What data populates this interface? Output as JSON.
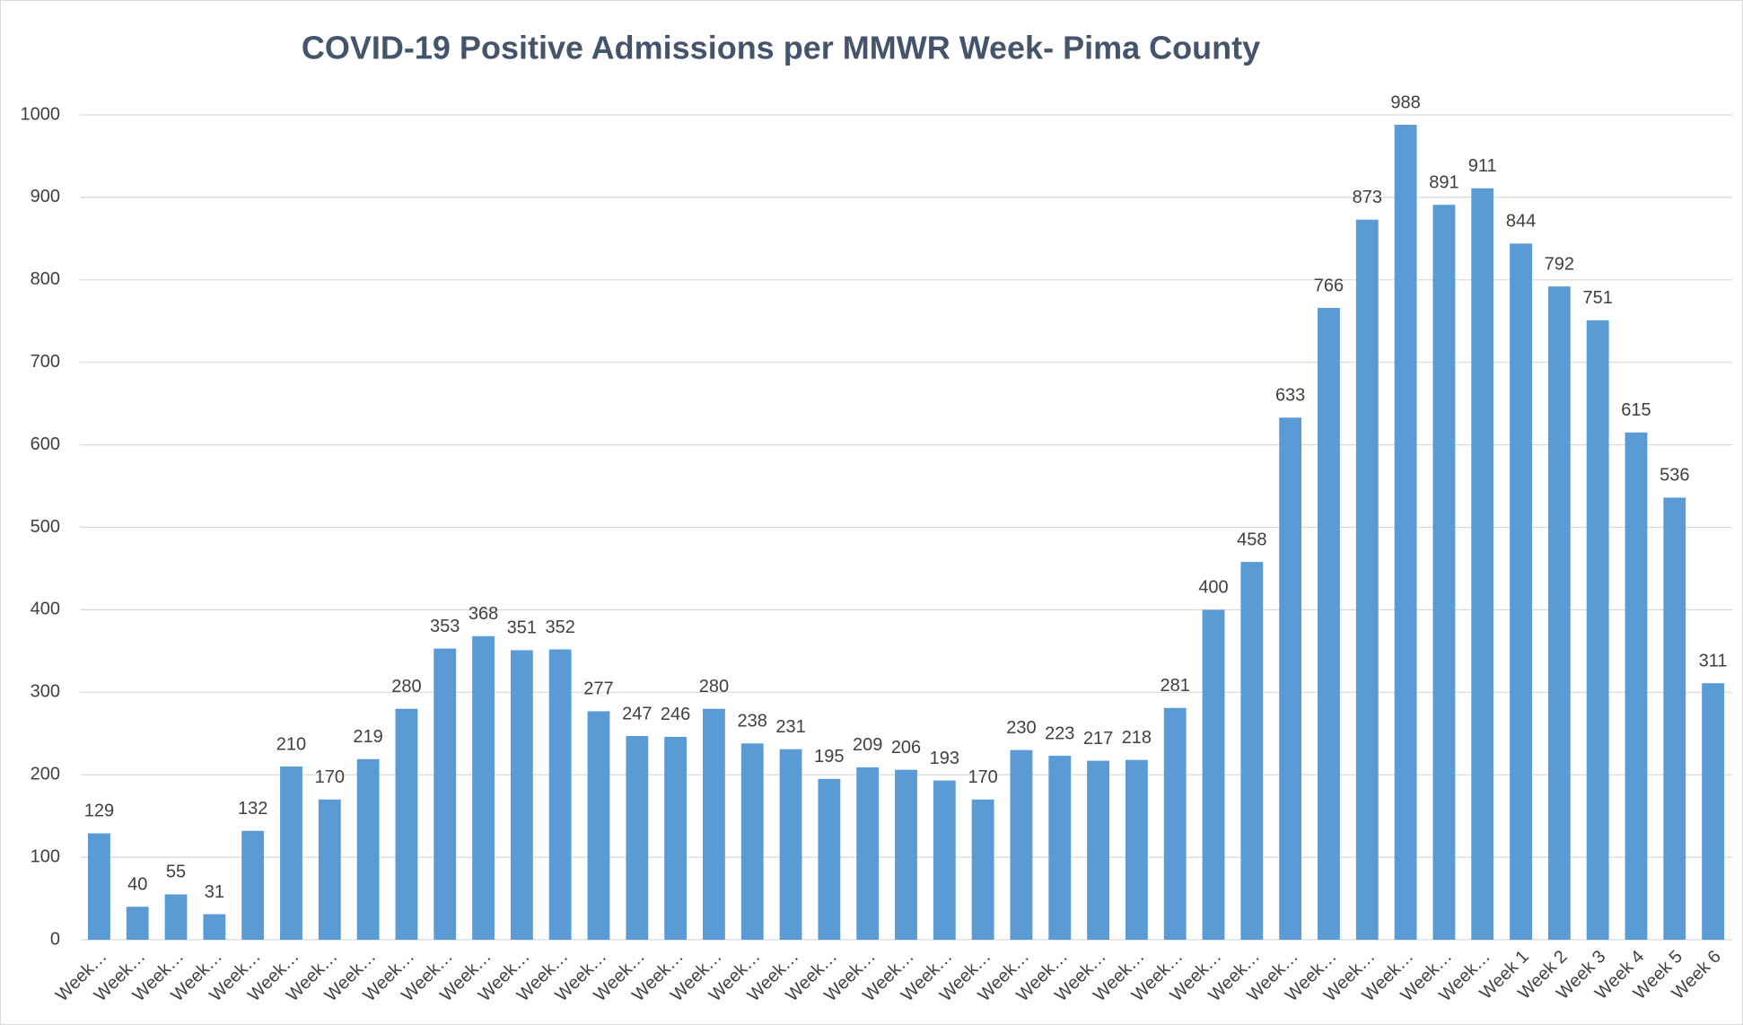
{
  "chart_data": {
    "type": "bar",
    "title": "COVID-19 Positive Admissions per MMWR Week- Pima County",
    "categories": [
      "Week…",
      "Week…",
      "Week…",
      "Week…",
      "Week…",
      "Week…",
      "Week…",
      "Week…",
      "Week…",
      "Week…",
      "Week…",
      "Week…",
      "Week…",
      "Week…",
      "Week…",
      "Week…",
      "Week…",
      "Week…",
      "Week…",
      "Week…",
      "Week…",
      "Week…",
      "Week…",
      "Week…",
      "Week…",
      "Week…",
      "Week…",
      "Week…",
      "Week…",
      "Week…",
      "Week…",
      "Week…",
      "Week…",
      "Week…",
      "Week…",
      "Week…",
      "Week…",
      "Week 1",
      "Week 2",
      "Week 3",
      "Week 4",
      "Week 5",
      "Week 6"
    ],
    "values": [
      129,
      40,
      55,
      31,
      132,
      210,
      170,
      219,
      280,
      353,
      368,
      351,
      352,
      277,
      247,
      246,
      280,
      238,
      231,
      195,
      209,
      206,
      193,
      170,
      230,
      223,
      217,
      218,
      281,
      400,
      458,
      633,
      766,
      873,
      988,
      891,
      911,
      844,
      792,
      751,
      615,
      536,
      311
    ],
    "color": "#5b9bd5",
    "ylim": [
      0,
      1000
    ],
    "yticks": [
      0,
      100,
      200,
      300,
      400,
      500,
      600,
      700,
      800,
      900,
      1000
    ],
    "grid": true
  }
}
